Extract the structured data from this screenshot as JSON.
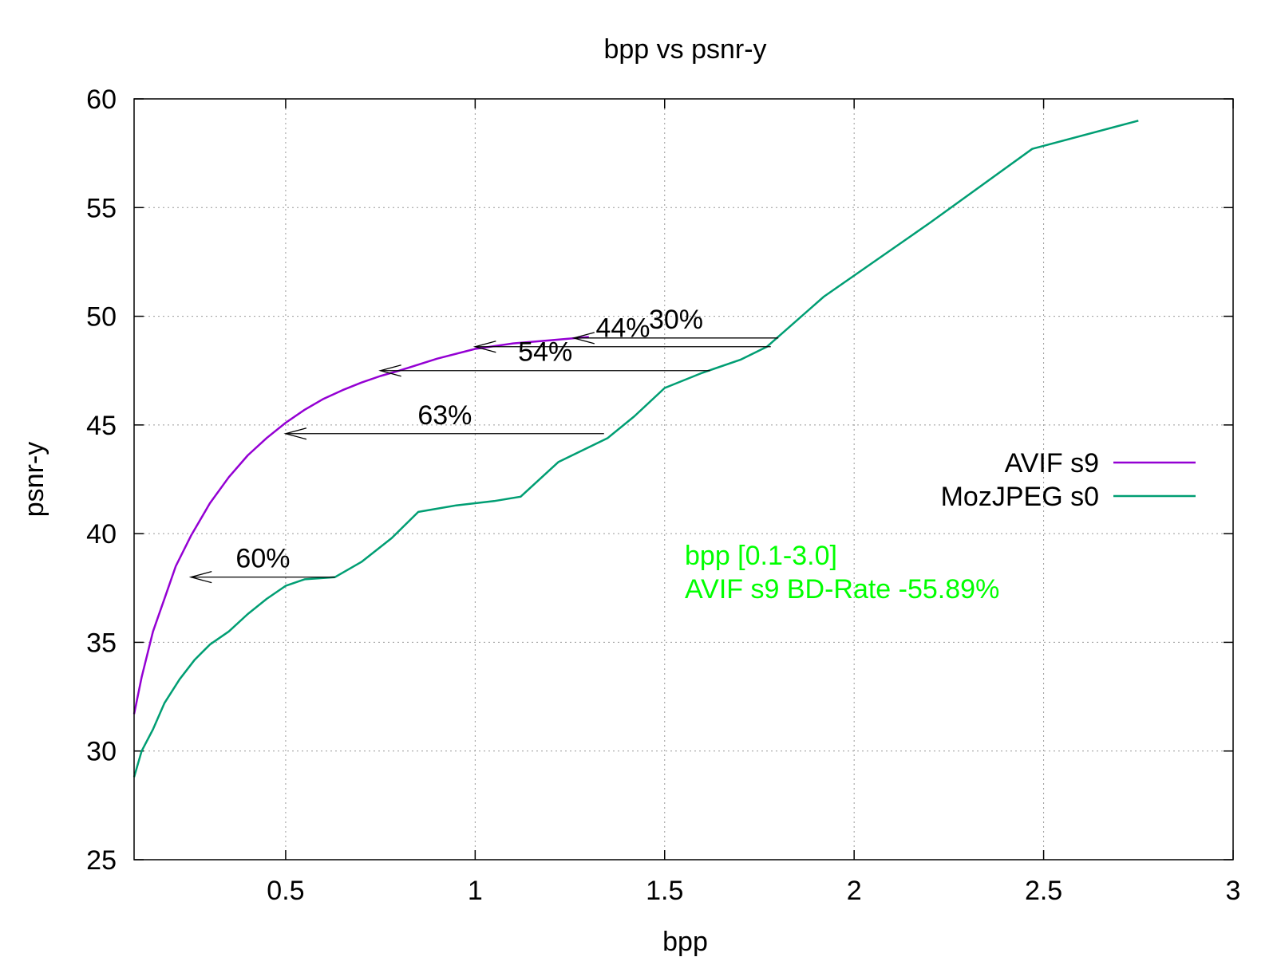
{
  "chart_data": {
    "type": "line",
    "title": "bpp vs psnr-y",
    "xlabel": "bpp",
    "ylabel": "psnr-y",
    "xlim": [
      0.1,
      3.0
    ],
    "ylim": [
      25,
      60
    ],
    "xticks": [
      0.5,
      1,
      1.5,
      2,
      2.5,
      3
    ],
    "yticks": [
      25,
      30,
      35,
      40,
      45,
      50,
      55,
      60
    ],
    "grid": true,
    "legend_position": "right",
    "series": [
      {
        "name": "AVIF s9",
        "color": "#9400d3",
        "x": [
          0.1,
          0.12,
          0.15,
          0.18,
          0.21,
          0.25,
          0.3,
          0.35,
          0.4,
          0.45,
          0.5,
          0.55,
          0.6,
          0.65,
          0.7,
          0.75,
          0.8,
          0.9,
          1.0,
          1.1,
          1.2,
          1.3
        ],
        "y": [
          31.7,
          33.4,
          35.5,
          37.0,
          38.5,
          39.9,
          41.4,
          42.6,
          43.6,
          44.4,
          45.1,
          45.7,
          46.2,
          46.6,
          46.95,
          47.25,
          47.5,
          48.05,
          48.5,
          48.75,
          48.9,
          49.05
        ]
      },
      {
        "name": "MozJPEG s0",
        "color": "#009e73",
        "x": [
          0.1,
          0.12,
          0.15,
          0.18,
          0.22,
          0.26,
          0.3,
          0.35,
          0.4,
          0.45,
          0.5,
          0.55,
          0.63,
          0.7,
          0.78,
          0.85,
          0.95,
          1.05,
          1.12,
          1.22,
          1.35,
          1.42,
          1.5,
          1.6,
          1.7,
          1.77,
          1.92,
          2.2,
          2.47,
          2.75
        ],
        "y": [
          28.8,
          30.0,
          31.0,
          32.2,
          33.3,
          34.2,
          34.9,
          35.5,
          36.3,
          37.0,
          37.6,
          37.9,
          38.0,
          38.7,
          39.8,
          41.0,
          41.3,
          41.5,
          41.7,
          43.3,
          44.4,
          45.4,
          46.7,
          47.4,
          48.0,
          48.6,
          50.9,
          54.3,
          57.7,
          59.0
        ]
      }
    ],
    "arrows": [
      {
        "label": "60%",
        "y": 38.0,
        "x_from": 0.63,
        "x_to": 0.25
      },
      {
        "label": "63%",
        "y": 44.6,
        "x_from": 1.34,
        "x_to": 0.5
      },
      {
        "label": "54%",
        "y": 47.5,
        "x_from": 1.62,
        "x_to": 0.75
      },
      {
        "label": "44%",
        "y": 48.6,
        "x_from": 1.78,
        "x_to": 1.0
      },
      {
        "label": "30%",
        "y": 49.0,
        "x_from": 1.8,
        "x_to": 1.26
      }
    ],
    "annotations": [
      {
        "text": "bpp [0.1-3.0]",
        "color": "#00ff00"
      },
      {
        "text": "AVIF s9 BD-Rate -55.89%",
        "color": "#00ff00"
      }
    ]
  }
}
